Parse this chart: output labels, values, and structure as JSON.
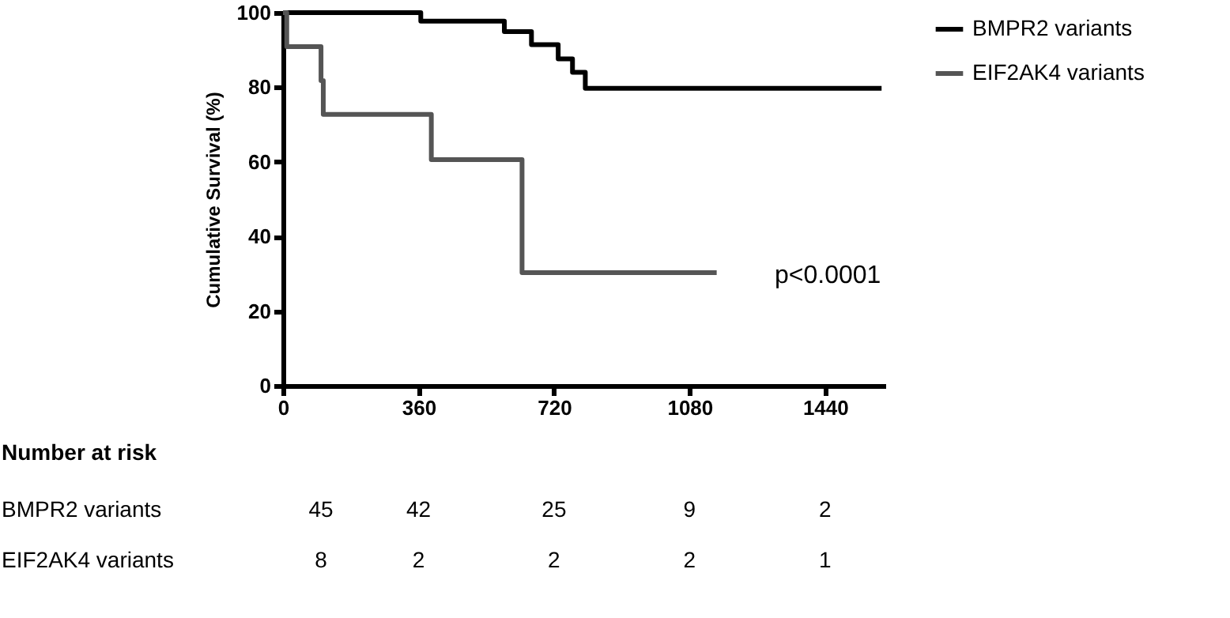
{
  "chart_data": {
    "type": "step",
    "ylabel": "Cumulative Survival (%)",
    "xlim": [
      0,
      1600
    ],
    "xticks": [
      0,
      360,
      720,
      1080,
      1440
    ],
    "ylim": [
      0,
      100
    ],
    "yticks": [
      0,
      20,
      40,
      60,
      80,
      100
    ],
    "grid": false,
    "legend": "top right",
    "line_style": "solid",
    "marker": "none",
    "series": [
      {
        "name": "BMPR2 variants",
        "color": "#000000",
        "x": [
          0,
          366,
          588,
          660,
          731,
          769,
          803,
          1590
        ],
        "values": [
          100,
          97.7,
          94.9,
          91.4,
          87.6,
          84,
          79.7,
          79.7
        ]
      },
      {
        "name": "EIF2AK4 variants",
        "color": "#555555",
        "x": [
          0,
          10,
          101,
          107,
          394,
          635,
          1152
        ],
        "values": [
          100,
          90.9,
          81.8,
          72.7,
          60.6,
          30.3,
          30.3
        ]
      }
    ],
    "annotations": [
      "p<0.0001",
      "Number at risk",
      "BMPR2 variants",
      "45",
      "42",
      "25",
      "9",
      "2",
      "EIF2AK4 variants",
      "8",
      "2",
      "2",
      "2",
      "1"
    ]
  }
}
